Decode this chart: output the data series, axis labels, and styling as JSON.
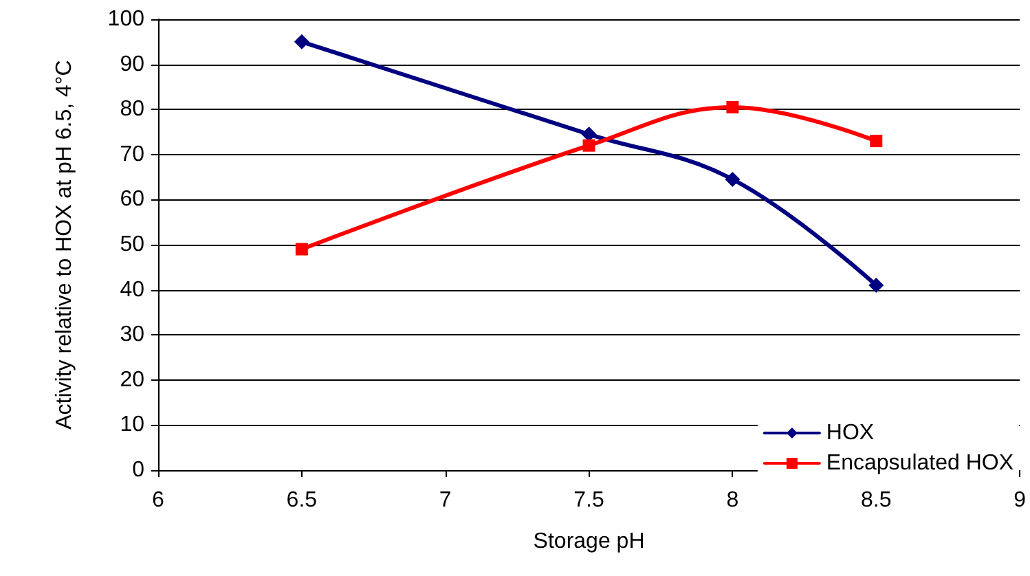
{
  "chart_data": {
    "type": "line",
    "xlabel": "Storage pH",
    "ylabel": "Activity relative to HOX at pH 6.5, 4°C",
    "x": [
      6.5,
      7.5,
      8,
      8.5
    ],
    "series": [
      {
        "name": "HOX",
        "color": "#000080",
        "values": [
          95,
          74.5,
          64.5,
          41
        ],
        "marker": "diamond"
      },
      {
        "name": "Encapsulated HOX",
        "color": "#ff0000",
        "values": [
          49,
          72,
          80.5,
          73
        ],
        "marker": "square"
      }
    ],
    "xlim": [
      6,
      9
    ],
    "xticks": [
      6,
      6.5,
      7,
      7.5,
      8,
      8.5,
      9
    ],
    "ylim": [
      0,
      100
    ],
    "yticks": [
      0,
      10,
      20,
      30,
      40,
      50,
      60,
      70,
      80,
      90,
      100
    ],
    "grid": "y",
    "legend": "bottom right",
    "line_style": "solid"
  }
}
